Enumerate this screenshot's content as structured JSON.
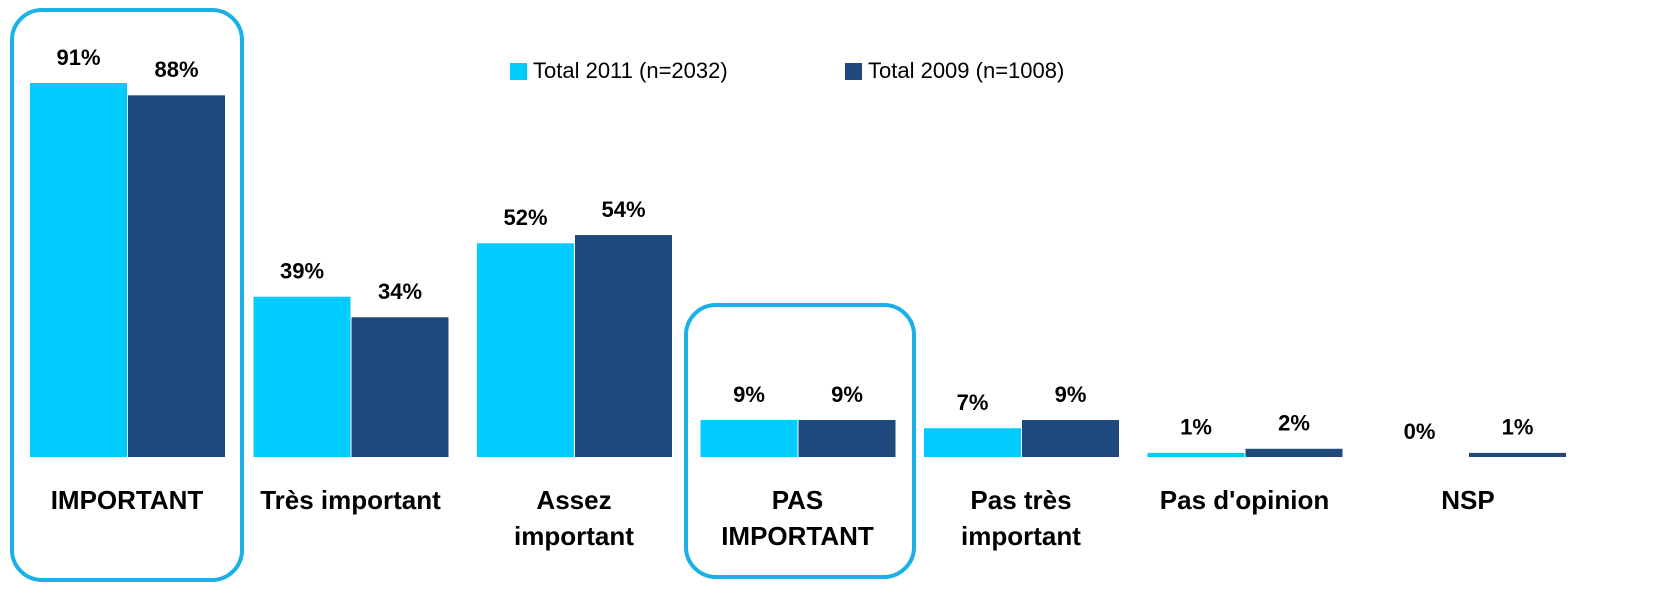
{
  "chart_data": {
    "type": "bar",
    "categories": [
      "IMPORTANT",
      "Très important",
      "Assez\nimportant",
      "PAS\nIMPORTANT",
      "Pas très\nimportant",
      "Pas d'opinion",
      "NSP"
    ],
    "series": [
      {
        "name": "Total 2011 (n=2032)",
        "color": "#00ccff",
        "values": [
          91,
          39,
          52,
          9,
          7,
          1,
          0
        ],
        "value_labels": [
          "91%",
          "39%",
          "52%",
          "9%",
          "7%",
          "1%",
          "0%"
        ]
      },
      {
        "name": "Total 2009 (n=1008)",
        "color": "#1f497d",
        "values": [
          88,
          34,
          54,
          9,
          9,
          2,
          1
        ],
        "value_labels": [
          "88%",
          "34%",
          "54%",
          "9%",
          "9%",
          "2%",
          "1%"
        ]
      }
    ],
    "legend": "top"
  }
}
